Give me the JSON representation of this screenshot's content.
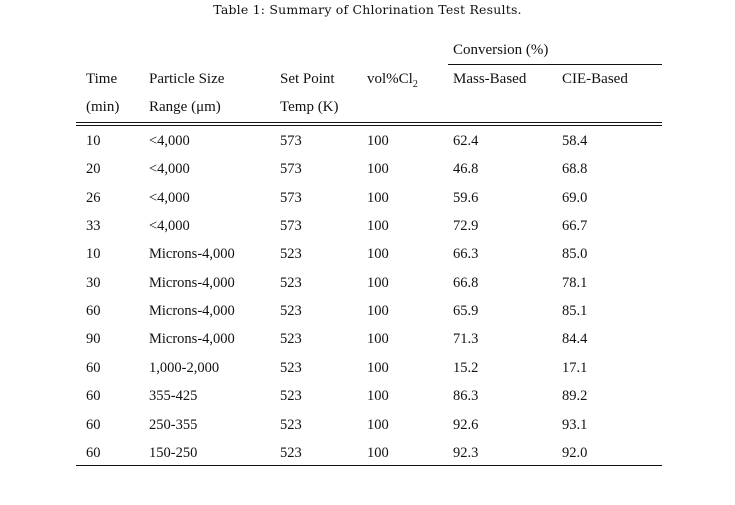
{
  "caption": "Table 1: Summary of Chlorination Test Results.",
  "header": {
    "group_label": "Conversion (%)",
    "time": "Time",
    "time_unit": "(min)",
    "particle": "Particle Size",
    "particle_unit": "Range (μm)",
    "setpoint": "Set Point",
    "setpoint_unit": "Temp (K)",
    "vol_prefix": "vol%Cl",
    "vol_sub": "2",
    "mass": "Mass-Based",
    "cie": "CIE-Based"
  },
  "rows": [
    {
      "time": "10",
      "range": "<4,000",
      "temp": "573",
      "vol": "100",
      "mass": "62.4",
      "cie": "58.4"
    },
    {
      "time": "20",
      "range": "<4,000",
      "temp": "573",
      "vol": "100",
      "mass": "46.8",
      "cie": "68.8"
    },
    {
      "time": "26",
      "range": "<4,000",
      "temp": "573",
      "vol": "100",
      "mass": "59.6",
      "cie": "69.0"
    },
    {
      "time": "33",
      "range": "<4,000",
      "temp": "573",
      "vol": "100",
      "mass": "72.9",
      "cie": "66.7"
    },
    {
      "time": "10",
      "range": "Microns-4,000",
      "temp": "523",
      "vol": "100",
      "mass": "66.3",
      "cie": "85.0"
    },
    {
      "time": "30",
      "range": "Microns-4,000",
      "temp": "523",
      "vol": "100",
      "mass": "66.8",
      "cie": "78.1"
    },
    {
      "time": "60",
      "range": "Microns-4,000",
      "temp": "523",
      "vol": "100",
      "mass": "65.9",
      "cie": "85.1"
    },
    {
      "time": "90",
      "range": "Microns-4,000",
      "temp": "523",
      "vol": "100",
      "mass": "71.3",
      "cie": "84.4"
    },
    {
      "time": "60",
      "range": "1,000-2,000",
      "temp": "523",
      "vol": "100",
      "mass": "15.2",
      "cie": "17.1"
    },
    {
      "time": "60",
      "range": "355-425",
      "temp": "523",
      "vol": "100",
      "mass": "86.3",
      "cie": "89.2"
    },
    {
      "time": "60",
      "range": "250-355",
      "temp": "523",
      "vol": "100",
      "mass": "92.6",
      "cie": "93.1"
    },
    {
      "time": "60",
      "range": "150-250",
      "temp": "523",
      "vol": "100",
      "mass": "92.3",
      "cie": "92.0"
    }
  ]
}
